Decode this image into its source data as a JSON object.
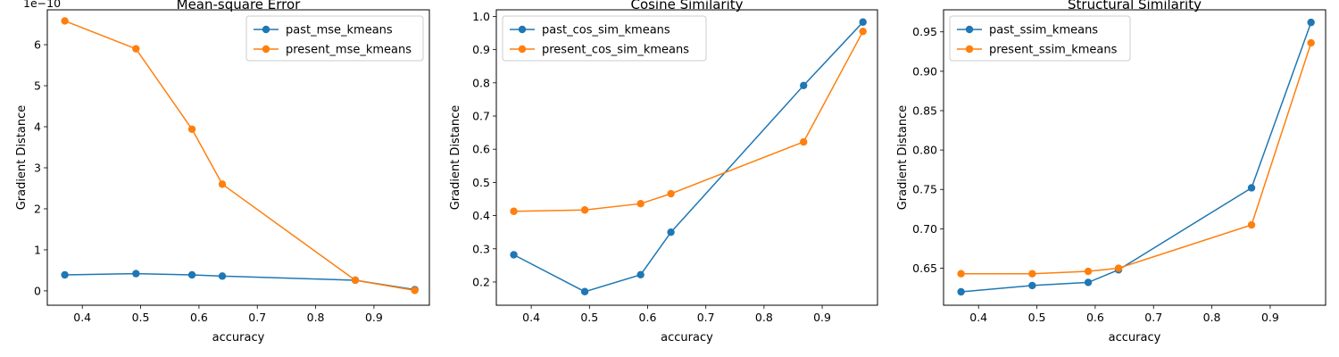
{
  "chart_data": [
    {
      "type": "line",
      "title": "Mean-square Error",
      "xlabel": "accuracy",
      "ylabel": "Gradient Distance",
      "y_offset_label": "1e−10",
      "xlim": [
        0.34,
        0.995
      ],
      "ylim": [
        -0.35,
        6.85
      ],
      "xticks": [
        0.4,
        0.5,
        0.6,
        0.7,
        0.8,
        0.9
      ],
      "xtick_labels": [
        "0.4",
        "0.5",
        "0.6",
        "0.7",
        "0.8",
        "0.9"
      ],
      "yticks": [
        0,
        1,
        2,
        3,
        4,
        5,
        6
      ],
      "ytick_labels": [
        "0",
        "1",
        "2",
        "3",
        "4",
        "5",
        "6"
      ],
      "legend": "top-right",
      "x": [
        0.37,
        0.492,
        0.588,
        0.64,
        0.868,
        0.97
      ],
      "series": [
        {
          "name": "past_mse_kmeans",
          "color": "#1f77b4",
          "values": [
            0.39,
            0.42,
            0.39,
            0.36,
            0.26,
            0.03
          ]
        },
        {
          "name": "present_mse_kmeans",
          "color": "#ff7f0e",
          "values": [
            6.58,
            5.9,
            3.94,
            2.6,
            0.26,
            0.01
          ]
        }
      ]
    },
    {
      "type": "line",
      "title": "Cosine Similarity",
      "xlabel": "accuracy",
      "ylabel": "Gradient Distance",
      "xlim": [
        0.34,
        0.995
      ],
      "ylim": [
        0.13,
        1.02
      ],
      "xticks": [
        0.4,
        0.5,
        0.6,
        0.7,
        0.8,
        0.9
      ],
      "xtick_labels": [
        "0.4",
        "0.5",
        "0.6",
        "0.7",
        "0.8",
        "0.9"
      ],
      "yticks": [
        0.2,
        0.3,
        0.4,
        0.5,
        0.6,
        0.7,
        0.8,
        0.9,
        1.0
      ],
      "ytick_labels": [
        "0.2",
        "0.3",
        "0.4",
        "0.5",
        "0.6",
        "0.7",
        "0.8",
        "0.9",
        "1.0"
      ],
      "legend": "top-left",
      "x": [
        0.37,
        0.492,
        0.588,
        0.64,
        0.868,
        0.97
      ],
      "series": [
        {
          "name": "past_cos_sim_kmeans",
          "color": "#1f77b4",
          "values": [
            0.282,
            0.171,
            0.222,
            0.35,
            0.792,
            0.983
          ]
        },
        {
          "name": "present_cos_sim_kmeans",
          "color": "#ff7f0e",
          "values": [
            0.413,
            0.417,
            0.436,
            0.466,
            0.622,
            0.955
          ]
        }
      ]
    },
    {
      "type": "line",
      "title": "Structural Similarity",
      "xlabel": "accuracy",
      "ylabel": "Gradient Distance",
      "xlim": [
        0.34,
        0.995
      ],
      "ylim": [
        0.603,
        0.978
      ],
      "xticks": [
        0.4,
        0.5,
        0.6,
        0.7,
        0.8,
        0.9
      ],
      "xtick_labels": [
        "0.4",
        "0.5",
        "0.6",
        "0.7",
        "0.8",
        "0.9"
      ],
      "yticks": [
        0.65,
        0.7,
        0.75,
        0.8,
        0.85,
        0.9,
        0.95
      ],
      "ytick_labels": [
        "0.65",
        "0.70",
        "0.75",
        "0.80",
        "0.85",
        "0.90",
        "0.95"
      ],
      "legend": "top-left",
      "x": [
        0.37,
        0.492,
        0.588,
        0.64,
        0.868,
        0.97
      ],
      "series": [
        {
          "name": "past_ssim_kmeans",
          "color": "#1f77b4",
          "values": [
            0.62,
            0.628,
            0.632,
            0.648,
            0.752,
            0.962
          ]
        },
        {
          "name": "present_ssim_kmeans",
          "color": "#ff7f0e",
          "values": [
            0.643,
            0.643,
            0.646,
            0.65,
            0.705,
            0.936
          ]
        }
      ]
    }
  ]
}
